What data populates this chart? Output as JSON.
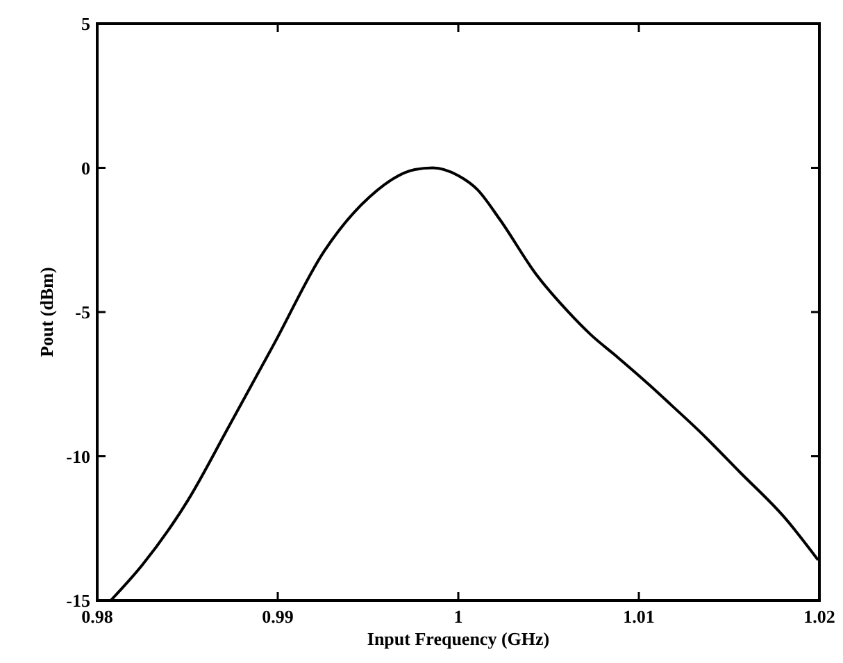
{
  "chart_data": {
    "type": "line",
    "xlabel": "Input Frequency (GHz)",
    "ylabel": "Pout (dBm)",
    "x": [
      0.98075,
      0.98251,
      0.98503,
      0.98729,
      0.9898,
      0.99256,
      0.99508,
      0.99759,
      0.99859,
      1.0,
      1.00105,
      1.0023,
      1.00432,
      1.00607,
      1.00733,
      1.00883,
      1.01059,
      1.01184,
      1.01335,
      1.01561,
      1.01812,
      1.01993
    ],
    "series": [
      {
        "color": "#000000",
        "values": [
          -15,
          -13.76,
          -11.52,
          -8.97,
          -6.1,
          -2.9,
          -1.01,
          -0.06,
          0,
          -0.27,
          -0.75,
          -1.79,
          -3.7,
          -4.98,
          -5.78,
          -6.57,
          -7.53,
          -8.25,
          -9.13,
          -10.56,
          -12.16,
          -13.6
        ]
      }
    ],
    "xlim": [
      0.98,
      1.02
    ],
    "xticks": [
      0.98,
      0.99,
      1,
      1.01,
      1.02
    ],
    "ylim": [
      -15,
      5
    ],
    "yticks": [
      -15,
      -10,
      -5,
      0,
      5
    ],
    "grid": false,
    "marker": "none",
    "line_style": "solid"
  }
}
